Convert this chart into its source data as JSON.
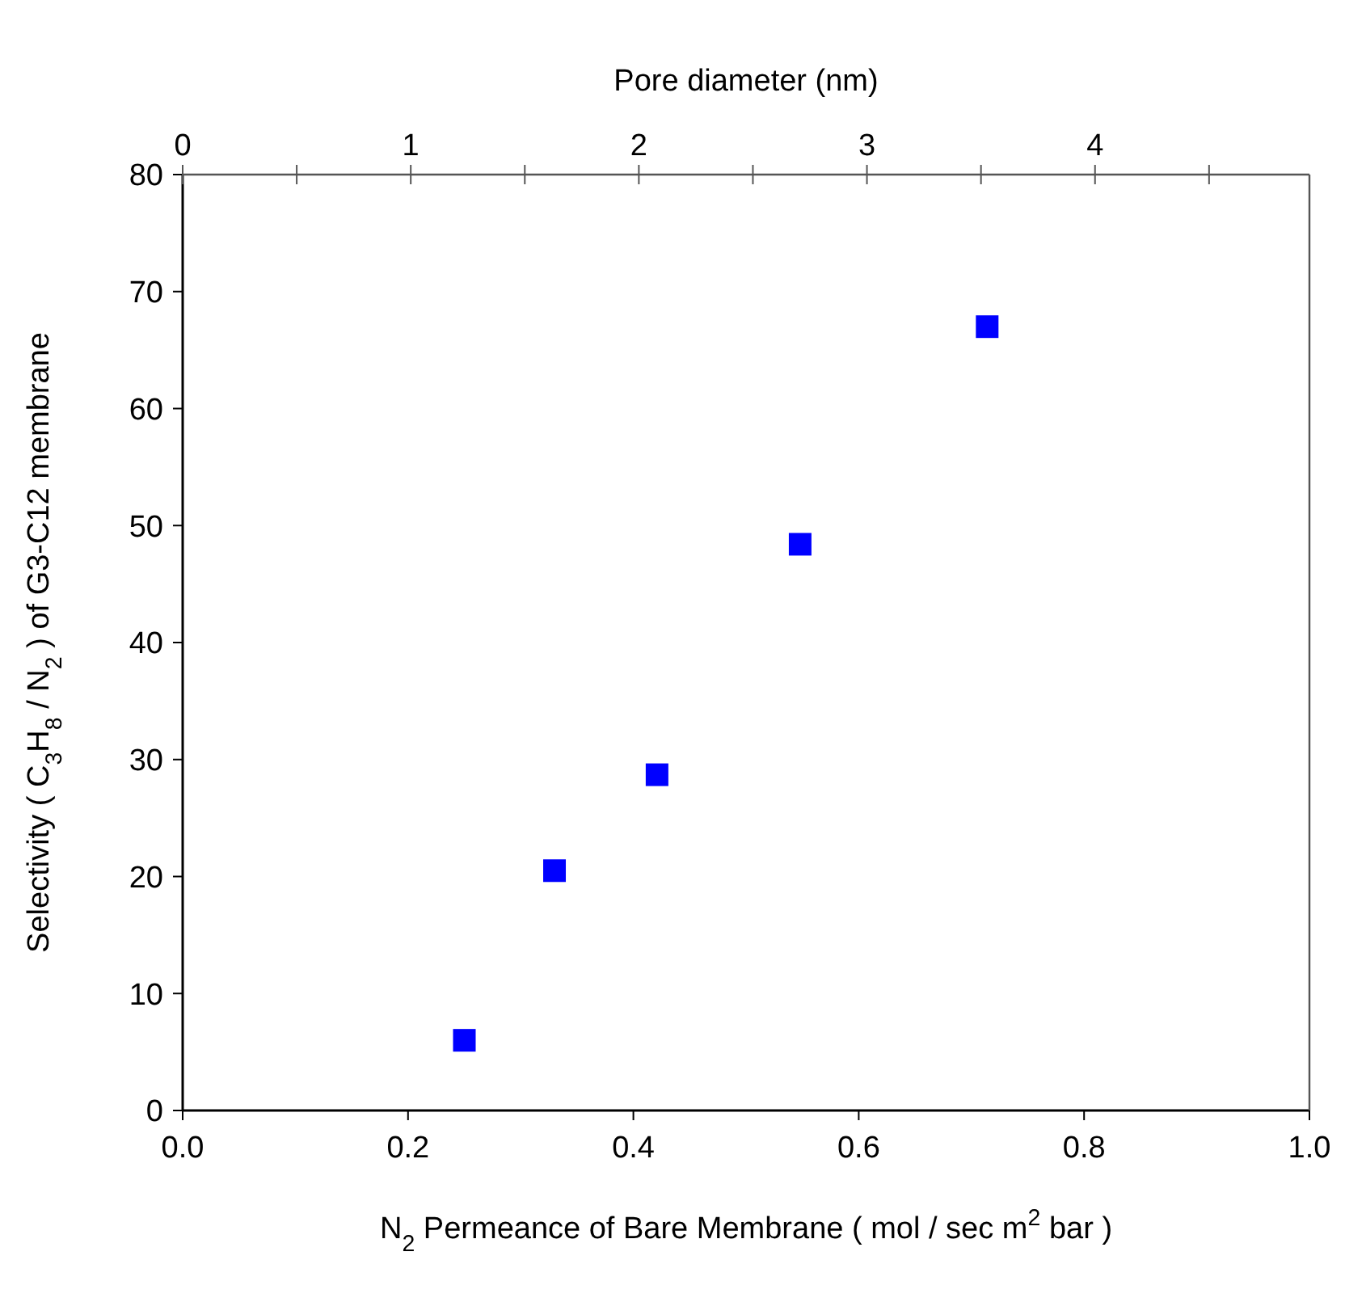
{
  "chart_data": {
    "type": "scatter",
    "xlabel": "N$_{2}$ Permeance of Bare Membrane ( mol / sec m$^{2}$ bar )",
    "ylabel": "Selectivity ( C$_{3}$H$_{8}$ / N$_{2}$ ) of G3-C12 membrane",
    "x2label": "Pore diameter (nm)",
    "x": [
      0.25,
      0.33,
      0.421,
      0.548,
      0.714
    ],
    "series": [
      {
        "color": "#0000ff",
        "values": [
          6,
          20.5,
          28.7,
          48.4,
          67
        ]
      }
    ],
    "xlim": [
      0,
      1
    ],
    "xticks": [
      {
        "value": 0,
        "label": "0.0"
      },
      0.2,
      0.4,
      0.6,
      0.8,
      {
        "value": 1,
        "label": "1.0"
      }
    ],
    "ylim": [
      0,
      80
    ],
    "yticks": [
      0,
      10,
      20,
      30,
      40,
      50,
      60,
      70,
      80
    ],
    "x2lim": [
      0,
      4.94
    ],
    "x2ticks": [
      0,
      {
        "value": 0.5,
        "label": null
      },
      1,
      {
        "value": 1.5,
        "label": null
      },
      2,
      {
        "value": 2.5,
        "label": null
      },
      3,
      {
        "value": 3.5,
        "label": null
      },
      4,
      {
        "value": 4.5,
        "label": null
      }
    ],
    "marker": "square",
    "grid": false
  }
}
